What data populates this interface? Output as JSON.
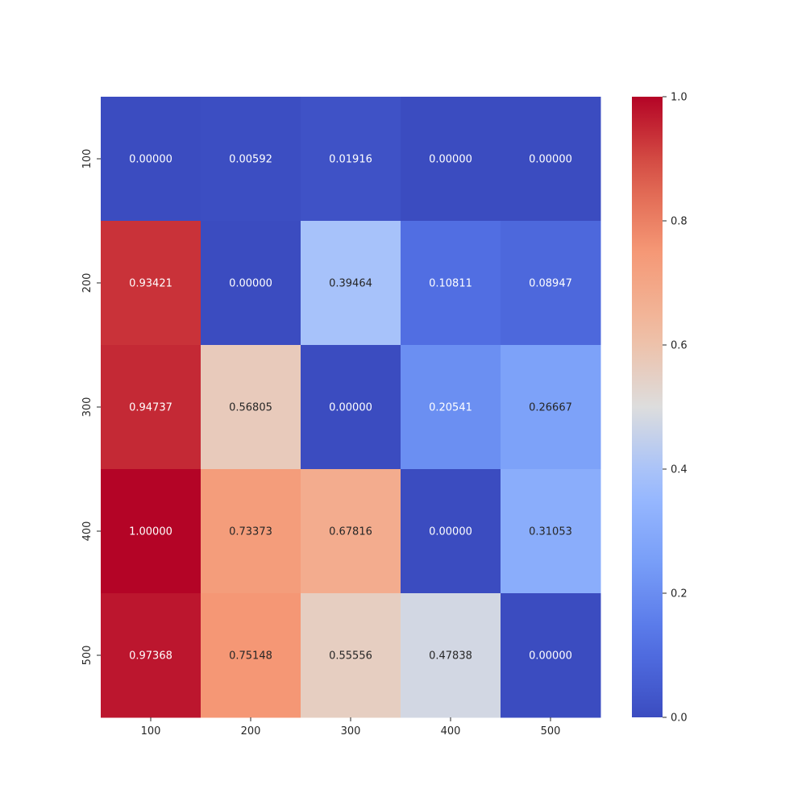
{
  "chart_data": {
    "type": "heatmap",
    "title": "",
    "xlabel": "",
    "ylabel": "",
    "x_categories": [
      "100",
      "200",
      "300",
      "400",
      "500"
    ],
    "y_categories": [
      "100",
      "200",
      "300",
      "400",
      "500"
    ],
    "values": [
      [
        0.0,
        0.00592,
        0.01916,
        0.0,
        0.0
      ],
      [
        0.93421,
        0.0,
        0.39464,
        0.10811,
        0.08947
      ],
      [
        0.94737,
        0.56805,
        0.0,
        0.20541,
        0.26667
      ],
      [
        1.0,
        0.73373,
        0.67816,
        0.0,
        0.31053
      ],
      [
        0.97368,
        0.75148,
        0.55556,
        0.47838,
        0.0
      ]
    ],
    "cell_labels": [
      [
        "0.00000",
        "0.00592",
        "0.01916",
        "0.00000",
        "0.00000"
      ],
      [
        "0.93421",
        "0.00000",
        "0.39464",
        "0.10811",
        "0.08947"
      ],
      [
        "0.94737",
        "0.56805",
        "0.00000",
        "0.20541",
        "0.26667"
      ],
      [
        "1.00000",
        "0.73373",
        "0.67816",
        "0.00000",
        "0.31053"
      ],
      [
        "0.97368",
        "0.75148",
        "0.55556",
        "0.47838",
        "0.00000"
      ]
    ],
    "colormap": "coolwarm",
    "colorbar": {
      "range": [
        0.0,
        1.0
      ],
      "ticks": [
        "0.0",
        "0.2",
        "0.4",
        "0.6",
        "0.8",
        "1.0"
      ],
      "placement": "right"
    },
    "grid": false
  }
}
